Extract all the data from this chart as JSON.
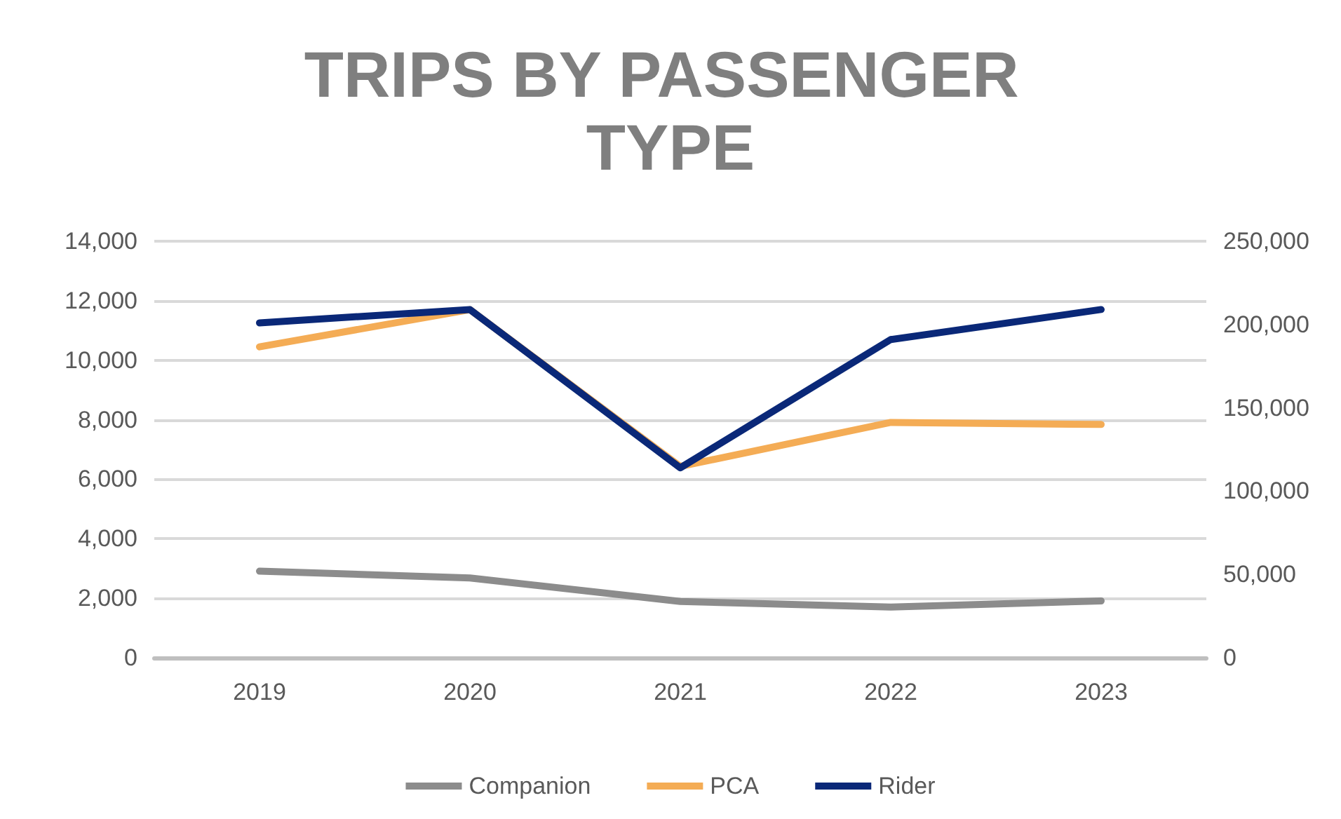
{
  "chart_data": {
    "type": "line",
    "title": "TRIPS BY PASSENGER TYPE",
    "categories": [
      "2019",
      "2020",
      "2021",
      "2022",
      "2023"
    ],
    "series": [
      {
        "name": "Companion",
        "color": "#8c8c8c",
        "values": [
          2910,
          2680,
          1890,
          1700,
          1910
        ]
      },
      {
        "name": "PCA",
        "color": "#f4ac55",
        "values": [
          10450,
          11700,
          6430,
          7910,
          7840
        ]
      },
      {
        "name": "Rider",
        "color": "#0a2878",
        "axis": "y2",
        "values": [
          201000,
          209000,
          114000,
          191000,
          209000
        ]
      }
    ],
    "ylim": [
      0,
      14000
    ],
    "yticks": [
      0,
      {
        "value": 2000,
        "label": "2,000"
      },
      {
        "value": 4000,
        "label": "4,000"
      },
      {
        "value": 6000,
        "label": "6,000"
      },
      {
        "value": 8000,
        "label": "8,000"
      },
      {
        "value": 10000,
        "label": "10,000"
      },
      {
        "value": 12000,
        "label": "12,000"
      },
      {
        "value": 14000,
        "label": "14,000"
      }
    ],
    "y2lim": [
      0,
      250000
    ],
    "y2ticks": [
      0,
      {
        "value": 50000,
        "label": "50,000"
      },
      {
        "value": 100000,
        "label": "100,000"
      },
      {
        "value": 150000,
        "label": "150,000"
      },
      {
        "value": 200000,
        "label": "200,000"
      },
      {
        "value": 250000,
        "label": "250,000"
      }
    ],
    "grid": "y",
    "legend": "bottom",
    "marker": "none",
    "line_style": "solid"
  }
}
